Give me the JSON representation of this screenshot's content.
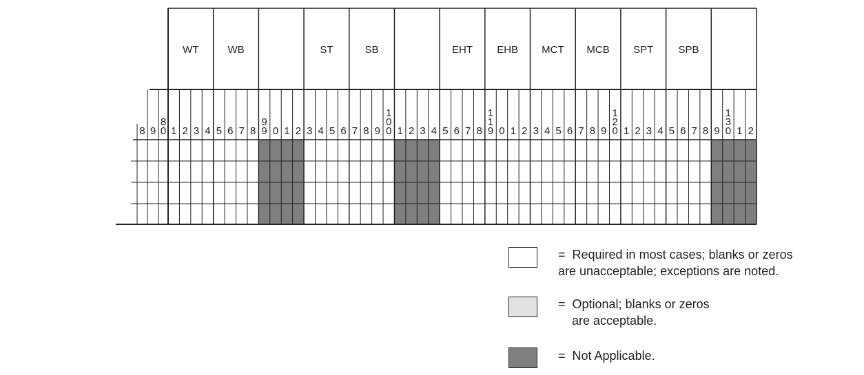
{
  "colors": {
    "required": "#ffffff",
    "optional": "#e2e2e2",
    "not_applicable": "#7f7f7f",
    "line": "#222222"
  },
  "column_numbers": [
    "8",
    "9",
    "8\n0",
    "1",
    "2",
    "3",
    "4",
    "5",
    "6",
    "7",
    "8",
    "9\n9",
    "0",
    "1",
    "2",
    "3",
    "4",
    "5",
    "6",
    "7",
    "8",
    "9",
    "1\n0\n0",
    "1",
    "2",
    "3",
    "4",
    "5",
    "6",
    "7",
    "8",
    "1\n1\n9",
    "0",
    "1",
    "2",
    "3",
    "4",
    "5",
    "6",
    "7",
    "8",
    "9",
    "1\n2\n0",
    "1",
    "2",
    "3",
    "4",
    "5",
    "6",
    "7",
    "8",
    "9",
    "1\n3\n0",
    "1",
    "2"
  ],
  "field_groups": [
    {
      "label": "WT",
      "shaded": false
    },
    {
      "label": "WB",
      "shaded": false
    },
    {
      "label": "",
      "shaded": true
    },
    {
      "label": "ST",
      "shaded": false
    },
    {
      "label": "SB",
      "shaded": false
    },
    {
      "label": "",
      "shaded": true
    },
    {
      "label": "EHT",
      "shaded": false
    },
    {
      "label": "EHB",
      "shaded": false
    },
    {
      "label": "MCT",
      "shaded": false
    },
    {
      "label": "MCB",
      "shaded": false
    },
    {
      "label": "SPT",
      "shaded": false
    },
    {
      "label": "SPB",
      "shaded": false
    },
    {
      "label": "",
      "shaded": true
    }
  ],
  "legend": {
    "required": {
      "text": "=  Required in most cases; blanks or zeros\nare unacceptable; exceptions are noted."
    },
    "optional": {
      "text": "=  Optional; blanks or zeros\n    are acceptable."
    },
    "not_applicable": {
      "text": "=  Not Applicable."
    }
  }
}
